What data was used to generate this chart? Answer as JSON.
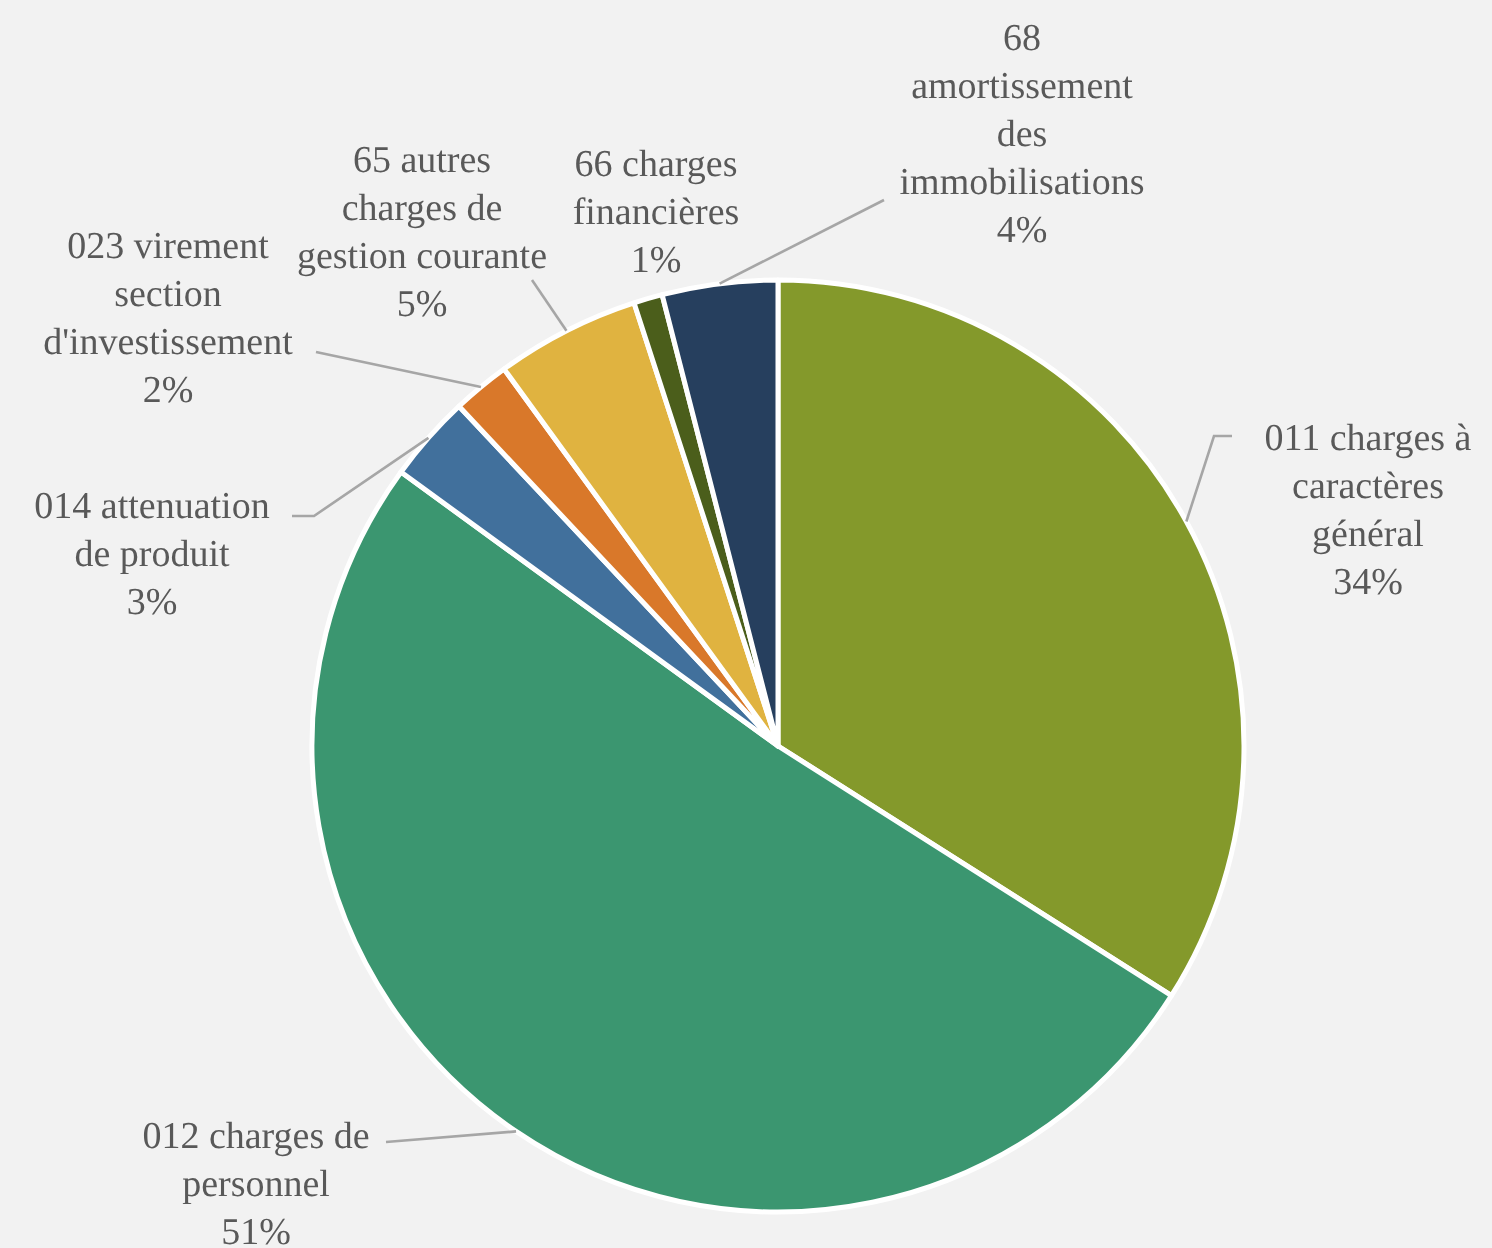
{
  "chart_data": {
    "type": "pie",
    "categories": [
      "011 charges à caractères général",
      "012 charges de personnel",
      "014 attenuation de produit",
      "023 virement section d'investissement",
      "65 autres charges de gestion courante",
      "66 charges financières",
      "68 amortissement des immobilisations"
    ],
    "values": [
      34,
      51,
      3,
      2,
      5,
      1,
      4
    ],
    "colors": [
      "#84992b",
      "#3b9670",
      "#41709c",
      "#d9782a",
      "#e0b340",
      "#4b5e1b",
      "#263f5e"
    ],
    "value_labels": [
      "34%",
      "51%",
      "3%",
      "2%",
      "5%",
      "1%",
      "4%"
    ]
  }
}
